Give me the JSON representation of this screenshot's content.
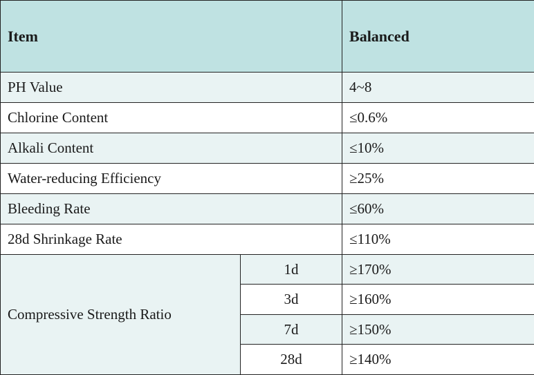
{
  "header": {
    "item": "Item",
    "balanced": "Balanced"
  },
  "rows": [
    {
      "item": "PH Value",
      "value": "4~8"
    },
    {
      "item": "Chlorine Content",
      "value": "≤0.6%"
    },
    {
      "item": "Alkali Content",
      "value": "≤10%"
    },
    {
      "item": "Water-reducing Efficiency",
      "value": "≥25%"
    },
    {
      "item": "Bleeding Rate",
      "value": "≤60%"
    },
    {
      "item": "28d Shrinkage Rate",
      "value": "≤110%"
    }
  ],
  "compressive": {
    "label": "Compressive Strength Ratio",
    "ages": [
      {
        "age": "1d",
        "value": "≥170%"
      },
      {
        "age": "3d",
        "value": "≥160%"
      },
      {
        "age": "7d",
        "value": "≥150%"
      },
      {
        "age": "28d",
        "value": "≥140%"
      }
    ]
  },
  "colors": {
    "header_bg": "#bfe2e2",
    "row_tint": "#e9f3f3",
    "row_white": "#ffffff",
    "border": "#222222"
  }
}
